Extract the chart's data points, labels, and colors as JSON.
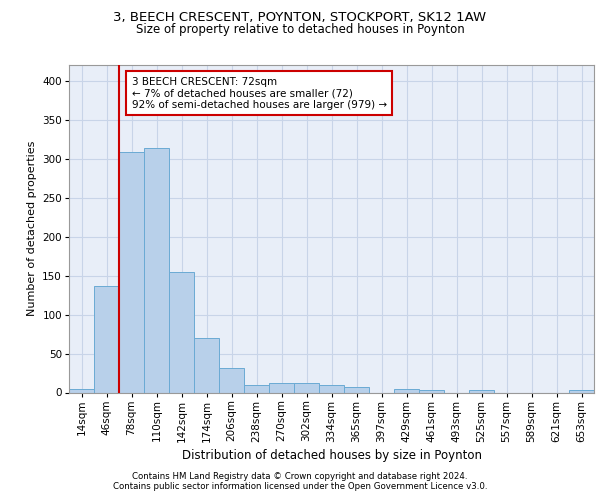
{
  "title_line1": "3, BEECH CRESCENT, POYNTON, STOCKPORT, SK12 1AW",
  "title_line2": "Size of property relative to detached houses in Poynton",
  "xlabel": "Distribution of detached houses by size in Poynton",
  "ylabel": "Number of detached properties",
  "footnote1": "Contains HM Land Registry data © Crown copyright and database right 2024.",
  "footnote2": "Contains public sector information licensed under the Open Government Licence v3.0.",
  "bar_labels": [
    "14sqm",
    "46sqm",
    "78sqm",
    "110sqm",
    "142sqm",
    "174sqm",
    "206sqm",
    "238sqm",
    "270sqm",
    "302sqm",
    "334sqm",
    "365sqm",
    "397sqm",
    "429sqm",
    "461sqm",
    "493sqm",
    "525sqm",
    "557sqm",
    "589sqm",
    "621sqm",
    "653sqm"
  ],
  "bar_values": [
    4,
    137,
    309,
    314,
    155,
    70,
    32,
    10,
    12,
    12,
    9,
    7,
    0,
    4,
    3,
    0,
    3,
    0,
    0,
    0,
    3
  ],
  "bar_color": "#b8d0ea",
  "bar_edge_color": "#6aaad4",
  "grid_color": "#c8d4e8",
  "background_color": "#e8eef8",
  "annotation_line1": "3 BEECH CRESCENT: 72sqm",
  "annotation_line2": "← 7% of detached houses are smaller (72)",
  "annotation_line3": "92% of semi-detached houses are larger (979) →",
  "annotation_box_color": "#ffffff",
  "annotation_box_edge": "#cc0000",
  "red_line_color": "#cc0000",
  "red_line_bin": 1.5,
  "ylim": [
    0,
    420
  ],
  "yticks": [
    0,
    50,
    100,
    150,
    200,
    250,
    300,
    350,
    400
  ],
  "title1_fontsize": 9.5,
  "title2_fontsize": 8.5,
  "ylabel_fontsize": 8,
  "xlabel_fontsize": 8.5,
  "tick_fontsize": 7.5,
  "annot_fontsize": 7.5,
  "footnote_fontsize": 6.2
}
